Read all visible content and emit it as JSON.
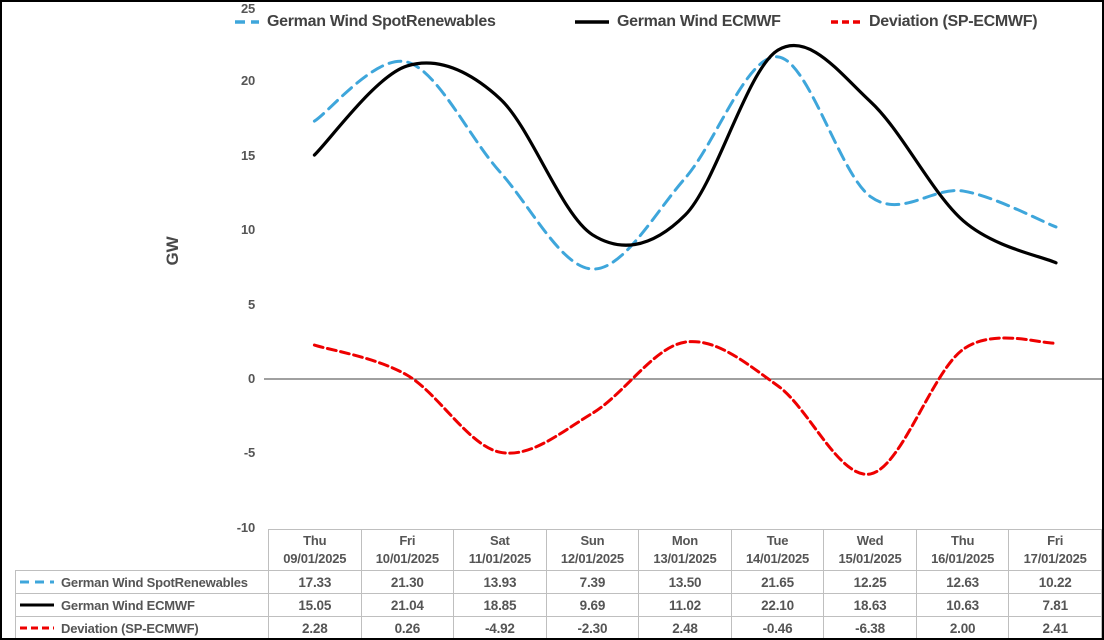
{
  "chart_data": {
    "type": "line",
    "x": [
      "Thu 09/01/2025",
      "Fri 10/01/2025",
      "Sat 11/01/2025",
      "Sun 12/01/2025",
      "Mon 13/01/2025",
      "Tue 14/01/2025",
      "Wed 15/01/2025",
      "Thu 16/01/2025",
      "Fri 17/01/2025"
    ],
    "series": [
      {
        "name": "German Wind SpotRenewables",
        "color": "#3EA6DB",
        "style": "dashed",
        "values": [
          17.33,
          21.3,
          13.93,
          7.39,
          13.5,
          21.65,
          12.25,
          12.63,
          10.22
        ]
      },
      {
        "name": "German Wind ECMWF",
        "color": "#000000",
        "style": "solid",
        "values": [
          15.05,
          21.04,
          18.85,
          9.69,
          11.02,
          22.1,
          18.63,
          10.63,
          7.81
        ]
      },
      {
        "name": "Deviation (SP-ECMWF)",
        "color": "#EE0000",
        "style": "dashed",
        "values": [
          2.28,
          0.26,
          -4.92,
          -2.3,
          2.48,
          -0.46,
          -6.38,
          2.0,
          2.41
        ]
      }
    ],
    "title": "",
    "xlabel": "",
    "ylabel": "GW",
    "ylim": [
      -10,
      25
    ],
    "y_ticks": [
      25,
      20,
      15,
      10,
      5,
      0,
      -5,
      -10
    ],
    "grid": false,
    "zero_line": true,
    "legend_position": "top",
    "line_smoothing": "spline"
  },
  "table": {
    "columns": [
      {
        "day": "Thu",
        "date": "09/01/2025"
      },
      {
        "day": "Fri",
        "date": "10/01/2025"
      },
      {
        "day": "Sat",
        "date": "11/01/2025"
      },
      {
        "day": "Sun",
        "date": "12/01/2025"
      },
      {
        "day": "Mon",
        "date": "13/01/2025"
      },
      {
        "day": "Tue",
        "date": "14/01/2025"
      },
      {
        "day": "Wed",
        "date": "15/01/2025"
      },
      {
        "day": "Thu",
        "date": "16/01/2025"
      },
      {
        "day": "Fri",
        "date": "17/01/2025"
      }
    ],
    "rows": [
      {
        "label": "German Wind SpotRenewables",
        "values": [
          "17.33",
          "21.30",
          "13.93",
          "7.39",
          "13.50",
          "21.65",
          "12.25",
          "12.63",
          "10.22"
        ]
      },
      {
        "label": "German Wind ECMWF",
        "values": [
          "15.05",
          "21.04",
          "18.85",
          "9.69",
          "11.02",
          "22.10",
          "18.63",
          "10.63",
          "7.81"
        ]
      },
      {
        "label": "Deviation (SP-ECMWF)",
        "values": [
          "2.28",
          "0.26",
          "-4.92",
          "-2.30",
          "2.48",
          "-0.46",
          "-6.38",
          "2.00",
          "2.41"
        ]
      }
    ]
  }
}
